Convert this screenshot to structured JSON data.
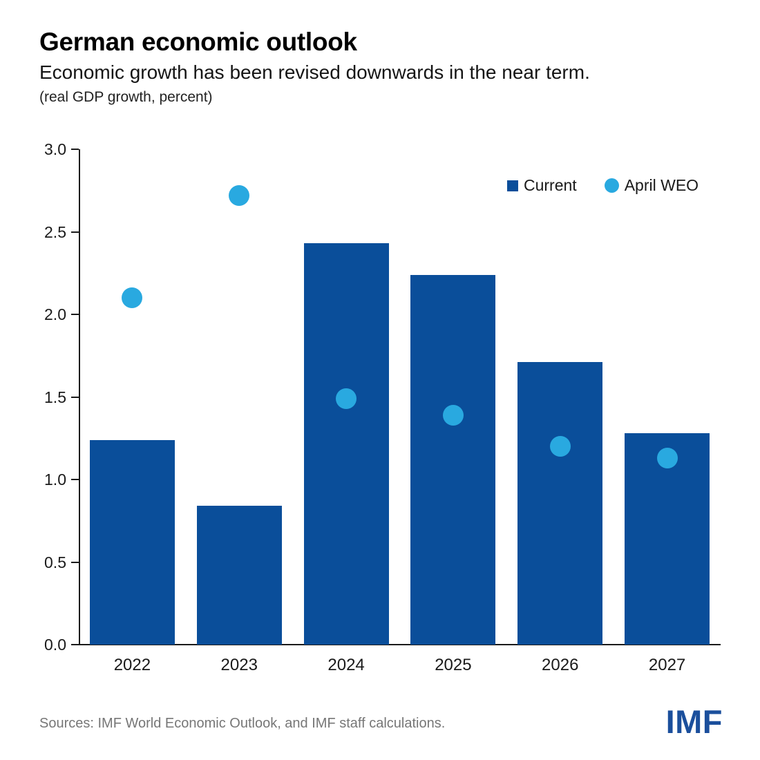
{
  "header": {
    "title": "German economic outlook",
    "subtitle": "Economic growth has been revised downwards in the near term.",
    "unit_note": "(real GDP growth, percent)"
  },
  "legend": [
    {
      "label": "Current",
      "marker": "square",
      "color": "#0a4e9a"
    },
    {
      "label": "April WEO",
      "marker": "circle",
      "color": "#29a9e0"
    }
  ],
  "chart_data": {
    "type": "bar",
    "title": "German economic outlook",
    "subtitle": "Economic growth has been revised downwards in the near term.",
    "unit": "real GDP growth, percent",
    "categories": [
      "2022",
      "2023",
      "2024",
      "2025",
      "2026",
      "2027"
    ],
    "series": [
      {
        "name": "Current",
        "type": "bar",
        "color": "#0a4e9a",
        "values": [
          1.24,
          0.84,
          2.43,
          2.24,
          1.71,
          1.28
        ]
      },
      {
        "name": "April WEO",
        "type": "scatter",
        "color": "#29a9e0",
        "values": [
          2.1,
          2.72,
          1.49,
          1.39,
          1.2,
          1.13
        ]
      }
    ],
    "xlabel": "",
    "ylabel": "",
    "ylim": [
      0.0,
      3.0
    ],
    "yticks": [
      0.0,
      0.5,
      1.0,
      1.5,
      2.0,
      2.5,
      3.0
    ],
    "grid": false,
    "legend_position": "top-right"
  },
  "footer": {
    "source": "Sources: IMF World Economic Outlook, and IMF staff calculations.",
    "logo": "IMF"
  },
  "colors": {
    "bar": "#0a4e9a",
    "dot": "#29a9e0",
    "axis": "#1a1a1a",
    "source_text": "#767676",
    "logo": "#1b4f9c"
  }
}
